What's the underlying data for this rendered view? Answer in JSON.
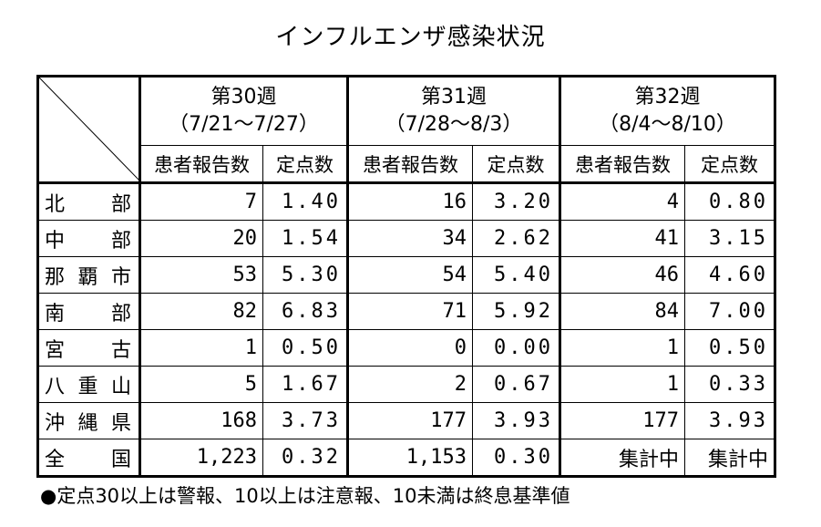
{
  "title": "インフルエンザ感染状況",
  "weeks": [
    {
      "label": "第30週",
      "range": "（7/21～7/27）"
    },
    {
      "label": "第31週",
      "range": "（7/28～8/3）"
    },
    {
      "label": "第32週",
      "range": "（8/4～8/10）"
    }
  ],
  "subheaders": {
    "reports": "患者報告数",
    "rate": "定点数"
  },
  "rows": [
    {
      "region": "北部",
      "w30": {
        "reports": "7",
        "rate": "1.40"
      },
      "w31": {
        "reports": "16",
        "rate": "3.20"
      },
      "w32": {
        "reports": "4",
        "rate": "0.80"
      }
    },
    {
      "region": "中部",
      "w30": {
        "reports": "20",
        "rate": "1.54"
      },
      "w31": {
        "reports": "34",
        "rate": "2.62"
      },
      "w32": {
        "reports": "41",
        "rate": "3.15"
      }
    },
    {
      "region": "那覇市",
      "w30": {
        "reports": "53",
        "rate": "5.30"
      },
      "w31": {
        "reports": "54",
        "rate": "5.40"
      },
      "w32": {
        "reports": "46",
        "rate": "4.60"
      }
    },
    {
      "region": "南部",
      "w30": {
        "reports": "82",
        "rate": "6.83"
      },
      "w31": {
        "reports": "71",
        "rate": "5.92"
      },
      "w32": {
        "reports": "84",
        "rate": "7.00"
      }
    },
    {
      "region": "宮古",
      "w30": {
        "reports": "1",
        "rate": "0.50"
      },
      "w31": {
        "reports": "0",
        "rate": "0.00"
      },
      "w32": {
        "reports": "1",
        "rate": "0.50"
      }
    },
    {
      "region": "八重山",
      "w30": {
        "reports": "5",
        "rate": "1.67"
      },
      "w31": {
        "reports": "2",
        "rate": "0.67"
      },
      "w32": {
        "reports": "1",
        "rate": "0.33"
      }
    },
    {
      "region": "沖縄県",
      "w30": {
        "reports": "168",
        "rate": "3.73"
      },
      "w31": {
        "reports": "177",
        "rate": "3.93"
      },
      "w32": {
        "reports": "177",
        "rate": "3.93"
      }
    },
    {
      "region": "全国",
      "w30": {
        "reports": "1,223",
        "rate": "0.32"
      },
      "w31": {
        "reports": "1,153",
        "rate": "0.30"
      },
      "w32": {
        "reports": "集計中",
        "rate": "集計中"
      }
    }
  ],
  "footnote": "●定点30以上は警報、10以上は注意報、10未満は終息基準値"
}
